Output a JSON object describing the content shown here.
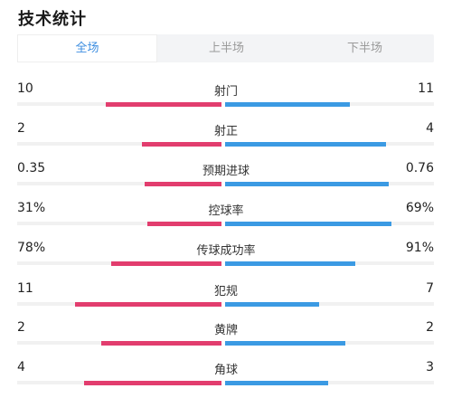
{
  "header": {
    "title": "技术统计"
  },
  "tabs": [
    {
      "label": "全场",
      "active": true
    },
    {
      "label": "上半场",
      "active": false
    },
    {
      "label": "下半场",
      "active": false
    }
  ],
  "colors": {
    "home_bar": "#e23d6e",
    "away_bar": "#3b9ae3",
    "active_tab": "#3d8ee0",
    "track": "#f1f1f1"
  },
  "stats": [
    {
      "label": "射门",
      "home": "10",
      "away": "11",
      "home_share": 0.48,
      "away_share": 0.52
    },
    {
      "label": "射正",
      "home": "2",
      "away": "4",
      "home_share": 0.33,
      "away_share": 0.67
    },
    {
      "label": "预期进球",
      "home": "0.35",
      "away": "0.76",
      "home_share": 0.32,
      "away_share": 0.68
    },
    {
      "label": "控球率",
      "home": "31%",
      "away": "69%",
      "home_share": 0.31,
      "away_share": 0.69
    },
    {
      "label": "传球成功率",
      "home": "78%",
      "away": "91%",
      "home_share": 0.46,
      "away_share": 0.54
    },
    {
      "label": "犯规",
      "home": "11",
      "away": "7",
      "home_share": 0.61,
      "away_share": 0.39
    },
    {
      "label": "黄牌",
      "home": "2",
      "away": "2",
      "home_share": 0.5,
      "away_share": 0.5
    },
    {
      "label": "角球",
      "home": "4",
      "away": "3",
      "home_share": 0.57,
      "away_share": 0.43
    }
  ]
}
